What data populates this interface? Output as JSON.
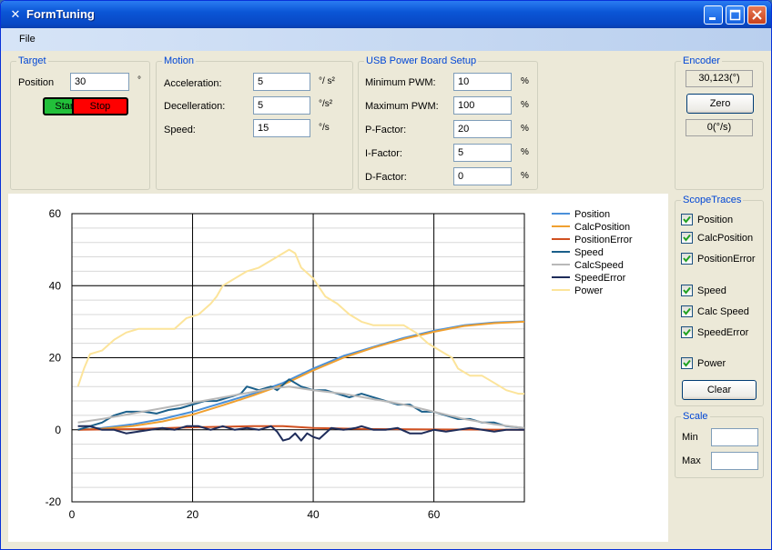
{
  "window": {
    "title": "FormTuning"
  },
  "menu": {
    "file": "File"
  },
  "target": {
    "title": "Target",
    "position_label": "Position",
    "position_value": "30",
    "position_unit": "°",
    "start_label": "Start",
    "stop_label": "Stop",
    "start_color": "#22c03a",
    "stop_color": "#ff0000"
  },
  "motion": {
    "title": "Motion",
    "acceleration_label": "Acceleration:",
    "acceleration_value": "5",
    "acceleration_unit": "°/ s²",
    "decceleration_label": "Decelleration:",
    "decceleration_value": "5",
    "decceleration_unit": "°/s²",
    "speed_label": "Speed:",
    "speed_value": "15",
    "speed_unit": "°/s"
  },
  "usb": {
    "title": "USB Power Board Setup",
    "min_pwm_label": "Minimum PWM:",
    "min_pwm_value": "10",
    "max_pwm_label": "Maximum PWM:",
    "max_pwm_value": "100",
    "p_label": "P-Factor:",
    "p_value": "20",
    "i_label": "I-Factor:",
    "i_value": "5",
    "d_label": "D-Factor:",
    "d_value": "0",
    "percent": "%"
  },
  "encoder": {
    "title": "Encoder",
    "position_readout": "30,123(°)",
    "zero_label": "Zero",
    "speed_readout": "0(°/s)"
  },
  "scope": {
    "title": "ScopeTraces",
    "items": [
      {
        "label": "Position",
        "checked": true
      },
      {
        "label": "CalcPosition",
        "checked": true
      },
      {
        "label": "PositionError",
        "checked": true
      },
      {
        "label": "Speed",
        "checked": true
      },
      {
        "label": "Calc Speed",
        "checked": true
      },
      {
        "label": "SpeedError",
        "checked": true
      },
      {
        "label": "Power",
        "checked": true
      }
    ],
    "clear_label": "Clear"
  },
  "scale": {
    "title": "Scale",
    "min_label": "Min",
    "min_value": "",
    "max_label": "Max",
    "max_value": ""
  },
  "chart_data": {
    "type": "line",
    "title": "",
    "xlabel": "",
    "ylabel": "",
    "xlim": [
      0,
      75
    ],
    "ylim": [
      -20,
      60
    ],
    "xticks": [
      0,
      20,
      40,
      60
    ],
    "yticks": [
      -20,
      0,
      20,
      40,
      60
    ],
    "minor_y_step": 4,
    "grid": true,
    "legend_position": "top-right",
    "series": [
      {
        "name": "Position",
        "color": "#4a90d9",
        "points": [
          [
            1,
            0
          ],
          [
            5,
            0.5
          ],
          [
            10,
            1.5
          ],
          [
            15,
            3
          ],
          [
            20,
            5
          ],
          [
            25,
            7.5
          ],
          [
            30,
            10
          ],
          [
            35,
            13
          ],
          [
            40,
            17
          ],
          [
            45,
            20.5
          ],
          [
            50,
            23
          ],
          [
            55,
            25.5
          ],
          [
            60,
            27.5
          ],
          [
            65,
            29
          ],
          [
            70,
            29.8
          ],
          [
            75,
            30.1
          ]
        ]
      },
      {
        "name": "CalcPosition",
        "color": "#f0a030",
        "points": [
          [
            1,
            0
          ],
          [
            5,
            0.3
          ],
          [
            10,
            1
          ],
          [
            15,
            2.3
          ],
          [
            20,
            4.2
          ],
          [
            25,
            6.8
          ],
          [
            30,
            9.5
          ],
          [
            35,
            12.5
          ],
          [
            40,
            16.5
          ],
          [
            45,
            20
          ],
          [
            50,
            22.8
          ],
          [
            55,
            25.2
          ],
          [
            60,
            27.2
          ],
          [
            65,
            28.8
          ],
          [
            70,
            29.6
          ],
          [
            75,
            30
          ]
        ]
      },
      {
        "name": "PositionError",
        "color": "#d05020",
        "points": [
          [
            1,
            0
          ],
          [
            10,
            0.2
          ],
          [
            20,
            0.7
          ],
          [
            30,
            1
          ],
          [
            35,
            1
          ],
          [
            40,
            0.5
          ],
          [
            50,
            0.2
          ],
          [
            60,
            0.1
          ],
          [
            75,
            0
          ]
        ]
      },
      {
        "name": "Speed",
        "color": "#1a5f8a",
        "points": [
          [
            1,
            0
          ],
          [
            3,
            1
          ],
          [
            5,
            2
          ],
          [
            7,
            4
          ],
          [
            9,
            5
          ],
          [
            12,
            5
          ],
          [
            14,
            4.5
          ],
          [
            16,
            5.5
          ],
          [
            18,
            6
          ],
          [
            20,
            7
          ],
          [
            22,
            8
          ],
          [
            24,
            8
          ],
          [
            26,
            9
          ],
          [
            28,
            10
          ],
          [
            29,
            12
          ],
          [
            31,
            11
          ],
          [
            33,
            12
          ],
          [
            34,
            11
          ],
          [
            36,
            14
          ],
          [
            38,
            12
          ],
          [
            40,
            11
          ],
          [
            42,
            11
          ],
          [
            44,
            10
          ],
          [
            46,
            9
          ],
          [
            48,
            10
          ],
          [
            50,
            9
          ],
          [
            52,
            8
          ],
          [
            54,
            7
          ],
          [
            56,
            7
          ],
          [
            58,
            5
          ],
          [
            60,
            5
          ],
          [
            62,
            4
          ],
          [
            64,
            3
          ],
          [
            66,
            3
          ],
          [
            68,
            2
          ],
          [
            70,
            2
          ],
          [
            72,
            1
          ],
          [
            75,
            0.5
          ]
        ]
      },
      {
        "name": "CalcSpeed",
        "color": "#b8b8b8",
        "points": [
          [
            1,
            2
          ],
          [
            5,
            3
          ],
          [
            10,
            4.5
          ],
          [
            15,
            6
          ],
          [
            20,
            7.5
          ],
          [
            25,
            9
          ],
          [
            30,
            10.5
          ],
          [
            33,
            11.5
          ],
          [
            36,
            12
          ],
          [
            40,
            11
          ],
          [
            45,
            10
          ],
          [
            50,
            8.5
          ],
          [
            55,
            7
          ],
          [
            60,
            5
          ],
          [
            65,
            3
          ],
          [
            70,
            1.5
          ],
          [
            75,
            0.5
          ]
        ]
      },
      {
        "name": "SpeedError",
        "color": "#1e2c5a",
        "points": [
          [
            1,
            1
          ],
          [
            3,
            1
          ],
          [
            5,
            0
          ],
          [
            7,
            0
          ],
          [
            9,
            -1
          ],
          [
            11,
            -0.5
          ],
          [
            13,
            0
          ],
          [
            15,
            0.5
          ],
          [
            17,
            0
          ],
          [
            19,
            1
          ],
          [
            21,
            1
          ],
          [
            23,
            0
          ],
          [
            25,
            1
          ],
          [
            27,
            0
          ],
          [
            29,
            0.5
          ],
          [
            31,
            0
          ],
          [
            33,
            1
          ],
          [
            34,
            -0.5
          ],
          [
            35,
            -3
          ],
          [
            36,
            -2.5
          ],
          [
            37,
            -1
          ],
          [
            38,
            -3
          ],
          [
            39,
            -1
          ],
          [
            40,
            -2
          ],
          [
            41,
            -2.5
          ],
          [
            42,
            -1
          ],
          [
            43,
            0.5
          ],
          [
            45,
            0
          ],
          [
            47,
            0.5
          ],
          [
            48,
            1
          ],
          [
            50,
            0
          ],
          [
            52,
            0
          ],
          [
            54,
            0.5
          ],
          [
            56,
            -1
          ],
          [
            58,
            -1
          ],
          [
            60,
            0
          ],
          [
            62,
            -0.5
          ],
          [
            64,
            0
          ],
          [
            66,
            0.5
          ],
          [
            68,
            0
          ],
          [
            70,
            -0.5
          ],
          [
            72,
            0
          ],
          [
            75,
            0
          ]
        ]
      },
      {
        "name": "Power",
        "color": "#fce49a",
        "points": [
          [
            1,
            12
          ],
          [
            2,
            17
          ],
          [
            3,
            21
          ],
          [
            5,
            22
          ],
          [
            7,
            25
          ],
          [
            9,
            27
          ],
          [
            11,
            28
          ],
          [
            14,
            28
          ],
          [
            17,
            28
          ],
          [
            19,
            31
          ],
          [
            21,
            32
          ],
          [
            23,
            35
          ],
          [
            24,
            37
          ],
          [
            25,
            40
          ],
          [
            27,
            42
          ],
          [
            29,
            44
          ],
          [
            31,
            45
          ],
          [
            33,
            47
          ],
          [
            34,
            48
          ],
          [
            35,
            49
          ],
          [
            36,
            50
          ],
          [
            37,
            49
          ],
          [
            38,
            45
          ],
          [
            40,
            42
          ],
          [
            42,
            37
          ],
          [
            44,
            35
          ],
          [
            46,
            32
          ],
          [
            48,
            30
          ],
          [
            50,
            29
          ],
          [
            53,
            29
          ],
          [
            55,
            29
          ],
          [
            57,
            27
          ],
          [
            59,
            24
          ],
          [
            61,
            22
          ],
          [
            63,
            20
          ],
          [
            64,
            17
          ],
          [
            66,
            15
          ],
          [
            68,
            15
          ],
          [
            70,
            13
          ],
          [
            72,
            11
          ],
          [
            74,
            10
          ],
          [
            75,
            10
          ]
        ]
      }
    ]
  }
}
